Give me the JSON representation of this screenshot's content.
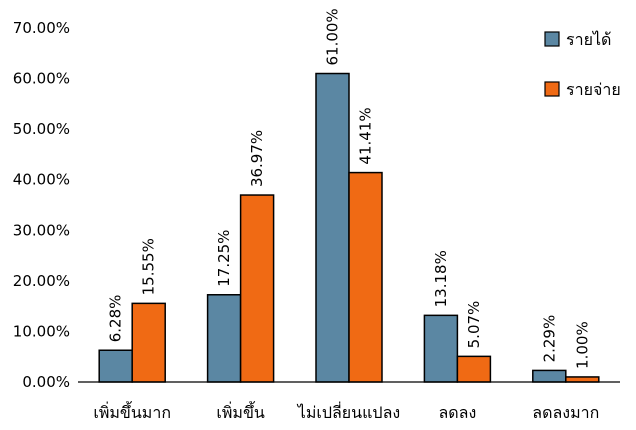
{
  "chart_data": {
    "type": "bar",
    "categories": [
      "เพิ่มขึ้นมาก",
      "เพิ่มขึ้น",
      "ไม่เปลี่ยนแปลง",
      "ลดลง",
      "ลดลงมาก"
    ],
    "series": [
      {
        "name": "รายได้",
        "values": [
          6.28,
          17.25,
          61.0,
          13.18,
          2.29
        ],
        "labels": [
          "6.28%",
          "17.25%",
          "61.00%",
          "13.18%",
          "2.29%"
        ],
        "color": "#5b87a3"
      },
      {
        "name": "รายจ่าย",
        "values": [
          15.55,
          36.97,
          41.41,
          5.07,
          1.0
        ],
        "labels": [
          "15.55%",
          "36.97%",
          "41.41%",
          "5.07%",
          "1.00%"
        ],
        "color": "#f06a14"
      }
    ],
    "ylim": [
      0,
      70
    ],
    "yticks": [
      0,
      10,
      20,
      30,
      40,
      50,
      60,
      70
    ],
    "ytick_labels": [
      "0.00%",
      "10.00%",
      "20.00%",
      "30.00%",
      "40.00%",
      "50.00%",
      "60.00%",
      "70.00%"
    ],
    "grid": false,
    "legend_position": "top-right",
    "title": "",
    "xlabel": "",
    "ylabel": ""
  }
}
